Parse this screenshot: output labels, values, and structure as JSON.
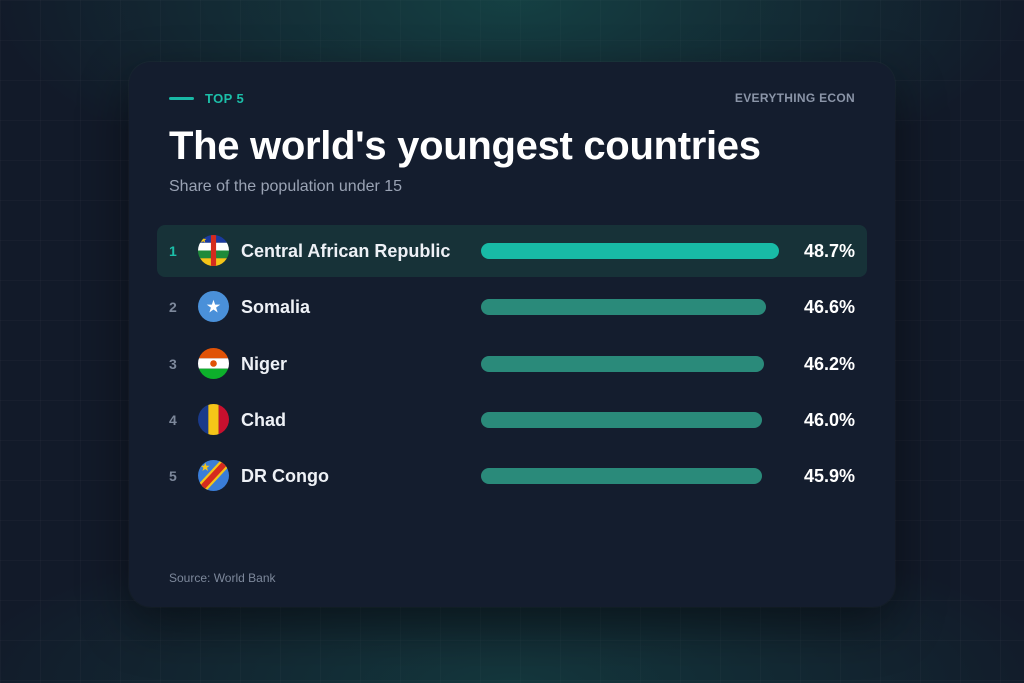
{
  "header": {
    "tag": "TOP 5",
    "brand": "EVERYTHING ECON",
    "title": "The world's youngest countries",
    "subtitle": "Share of the population under 15"
  },
  "footer": {
    "source": "Source: World Bank"
  },
  "colors": {
    "accent": "#18bba6",
    "bar": "#2a8a7a",
    "card": "#141d2e",
    "highlight_row": "#173238"
  },
  "chart_data": {
    "type": "bar",
    "orientation": "horizontal",
    "title": "The world's youngest countries",
    "subtitle": "Share of the population under 15",
    "unit": "%",
    "xlim": [
      0,
      48.7
    ],
    "grid": false,
    "ranks": [
      "1",
      "2",
      "3",
      "4",
      "5"
    ],
    "categories": [
      "Central African Republic",
      "Somalia",
      "Niger",
      "Chad",
      "DR Congo"
    ],
    "values": [
      48.7,
      46.6,
      46.2,
      46.0,
      45.9
    ],
    "value_labels": [
      "48.7%",
      "46.6%",
      "46.2%",
      "46.0%",
      "45.9%"
    ],
    "flag_icons": [
      "central-african-republic-flag-icon",
      "somalia-flag-icon",
      "niger-flag-icon",
      "chad-flag-icon",
      "dr-congo-flag-icon"
    ],
    "highlighted_index": 0
  }
}
